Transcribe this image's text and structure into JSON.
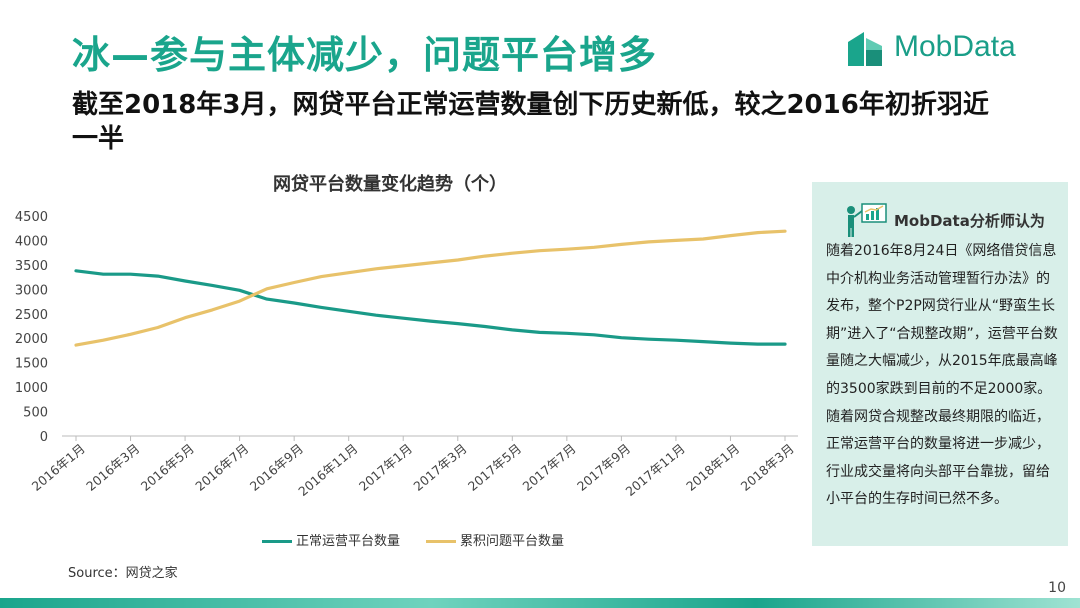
{
  "header": {
    "title": "冰—参与主体减少，问题平台增多",
    "subtitle": "截至2018年3月，网贷平台正常运营数量创下历史新低，较之2016年初折羽近一半",
    "logo_text": "MobData"
  },
  "chart_data": {
    "type": "line",
    "title": "网贷平台数量变化趋势（个）",
    "xlabel": "",
    "ylabel": "",
    "ylim": [
      0,
      4500
    ],
    "yticks": [
      0,
      500,
      1000,
      1500,
      2000,
      2500,
      3000,
      3500,
      4000,
      4500
    ],
    "x": [
      "2016年1月",
      "2016年2月",
      "2016年3月",
      "2016年4月",
      "2016年5月",
      "2016年6月",
      "2016年7月",
      "2016年8月",
      "2016年9月",
      "2016年10月",
      "2016年11月",
      "2016年12月",
      "2017年1月",
      "2017年2月",
      "2017年3月",
      "2017年4月",
      "2017年5月",
      "2017年6月",
      "2017年7月",
      "2017年8月",
      "2017年9月",
      "2017年10月",
      "2017年11月",
      "2017年12月",
      "2018年1月",
      "2018年2月",
      "2018年3月"
    ],
    "xtick_labels": [
      "2016年1月",
      "2016年3月",
      "2016年5月",
      "2016年7月",
      "2016年9月",
      "2016年11月",
      "2017年1月",
      "2017年3月",
      "2017年5月",
      "2017年7月",
      "2017年9月",
      "2017年11月",
      "2018年1月",
      "2018年3月"
    ],
    "legend_position": "bottom",
    "grid": false,
    "series": [
      {
        "name": "正常运营平台数量",
        "color": "#1a9a88",
        "values": [
          3380,
          3310,
          3310,
          3270,
          3170,
          3080,
          2980,
          2800,
          2720,
          2630,
          2550,
          2470,
          2410,
          2350,
          2300,
          2240,
          2170,
          2120,
          2100,
          2070,
          2010,
          1980,
          1960,
          1930,
          1900,
          1880,
          1880
        ]
      },
      {
        "name": "累积问题平台数量",
        "color": "#e8c26a",
        "values": [
          1860,
          1960,
          2080,
          2220,
          2420,
          2580,
          2760,
          3010,
          3140,
          3260,
          3340,
          3420,
          3480,
          3540,
          3600,
          3680,
          3740,
          3790,
          3820,
          3860,
          3920,
          3970,
          4000,
          4030,
          4100,
          4160,
          4190
        ]
      }
    ]
  },
  "source": "Source：网贷之家",
  "panel": {
    "title": "MobData分析师认为",
    "body": "随着2016年8月24日《网络借贷信息中介机构业务活动管理暂行办法》的发布，整个P2P网贷行业从“野蛮生长期”进入了“合规整改期”，运营平台数量随之大幅减少，从2015年底最高峰的3500家跌到目前的不足2000家。随着网贷合规整改最终期限的临近，正常运营平台的数量将进一步减少，行业成交量将向头部平台靠拢，留给小平台的生存时间已然不多。"
  },
  "page_number": "10"
}
